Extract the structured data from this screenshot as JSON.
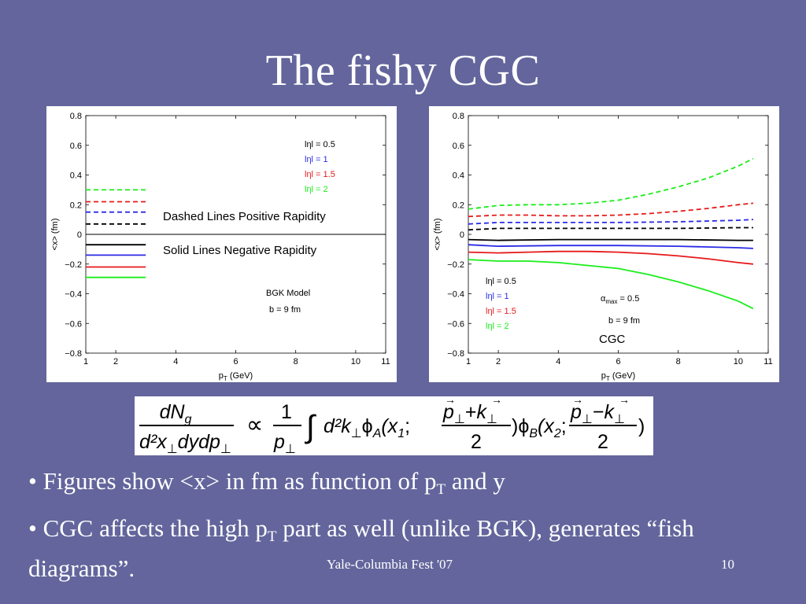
{
  "slide": {
    "title": "The fishy CGC",
    "footer": "Yale-Columbia Fest '07",
    "page_number": "10"
  },
  "bullets": [
    {
      "prefix": "• Figures show <x> in fm as function of p",
      "sub": "T",
      "suffix": " and y"
    },
    {
      "prefix": "• CGC affects the high p",
      "sub": "T",
      "suffix": " part as well (unlike BGK), generates “fish diagrams”."
    }
  ],
  "formula": {
    "lhs_num": "dN",
    "lhs_num_sub": "g",
    "lhs_den": "d²x",
    "lhs_den_rest": "dydp",
    "prop": "∝",
    "frac_num": "1",
    "frac_den": "p",
    "integral": "∫",
    "body": "d²k",
    "phiA": "ϕ",
    "phiA_sub": "A",
    "argA": "(x",
    "argA_sub": "1",
    "sep": ";",
    "num1": "p",
    "plus": "+",
    "k": "k",
    "two": "2",
    "close": ")",
    "phiB": "ϕ",
    "phiB_sub": "B",
    "argB": "(x",
    "argB_sub": "2",
    "minus": "−",
    "perp": "⊥",
    "arrow": "→"
  },
  "colors": {
    "background": "#63659c",
    "black": "#000000",
    "blue": "#2a2ae6",
    "red": "#e61a1a",
    "green": "#1aee1a"
  },
  "chart_data": [
    {
      "type": "line",
      "xlabel": "p_T (GeV)",
      "ylabel": "<x> (fm)",
      "xlim": [
        1,
        11
      ],
      "ylim": [
        -0.8,
        0.8
      ],
      "xticks": [
        "1",
        "2",
        "4",
        "6",
        "8",
        "10",
        "11"
      ],
      "xtick_values": [
        1,
        2,
        4,
        6,
        8,
        10,
        11
      ],
      "yticks": [
        "0.8",
        "0.6",
        "0.4",
        "0.2",
        "0",
        "−0.2",
        "−0.4",
        "−0.6",
        "−0.8"
      ],
      "ytick_values": [
        0.8,
        0.6,
        0.4,
        0.2,
        0,
        -0.2,
        -0.4,
        -0.6,
        -0.8
      ],
      "legend": [
        {
          "label": "lηl = 0.5",
          "color": "#000000"
        },
        {
          "label": "lηl = 1",
          "color": "#2a2ae6"
        },
        {
          "label": "lηl = 1.5",
          "color": "#e61a1a"
        },
        {
          "label": "lηl = 2",
          "color": "#1aee1a"
        }
      ],
      "legend_position": "top-right",
      "annotations": [
        "BGK Model",
        "b = 9 fm"
      ],
      "overlay_texts": [
        "Dashed Lines Positive Rapidity",
        "Solid Lines Negative Rapidity"
      ],
      "zero_line": true,
      "series": [
        {
          "name": "lηl = 0.5",
          "style": "dashed",
          "color": "#000000",
          "x": [
            1,
            3
          ],
          "y": [
            0.07,
            0.07
          ]
        },
        {
          "name": "lηl = 1",
          "style": "dashed",
          "color": "#2a2ae6",
          "x": [
            1,
            3
          ],
          "y": [
            0.15,
            0.15
          ]
        },
        {
          "name": "lηl = 1.5",
          "style": "dashed",
          "color": "#e61a1a",
          "x": [
            1,
            3
          ],
          "y": [
            0.22,
            0.22
          ]
        },
        {
          "name": "lηl = 2",
          "style": "dashed",
          "color": "#1aee1a",
          "x": [
            1,
            3
          ],
          "y": [
            0.3,
            0.3
          ]
        },
        {
          "name": "lηl = 0.5",
          "style": "solid",
          "color": "#000000",
          "x": [
            1,
            3
          ],
          "y": [
            -0.07,
            -0.07
          ]
        },
        {
          "name": "lηl = 1",
          "style": "solid",
          "color": "#2a2ae6",
          "x": [
            1,
            3
          ],
          "y": [
            -0.14,
            -0.14
          ]
        },
        {
          "name": "lηl = 1.5",
          "style": "solid",
          "color": "#e61a1a",
          "x": [
            1,
            3
          ],
          "y": [
            -0.22,
            -0.22
          ]
        },
        {
          "name": "lηl = 2",
          "style": "solid",
          "color": "#1aee1a",
          "x": [
            1,
            3
          ],
          "y": [
            -0.29,
            -0.29
          ]
        }
      ]
    },
    {
      "type": "line",
      "xlabel": "p_T (GeV)",
      "ylabel": "<x> (fm)",
      "xlim": [
        1,
        11
      ],
      "ylim": [
        -0.8,
        0.8
      ],
      "xticks": [
        "1",
        "2",
        "4",
        "6",
        "8",
        "10",
        "11"
      ],
      "xtick_values": [
        1,
        2,
        4,
        6,
        8,
        10,
        11
      ],
      "yticks": [
        "0.8",
        "0.6",
        "0.4",
        "0.2",
        "0",
        "−0.2",
        "−0.4",
        "−0.6",
        "−0.8"
      ],
      "ytick_values": [
        0.8,
        0.6,
        0.4,
        0.2,
        0,
        -0.2,
        -0.4,
        -0.6,
        -0.8
      ],
      "legend": [
        {
          "label": "lηl = 0.5",
          "color": "#000000"
        },
        {
          "label": "lηl = 1",
          "color": "#2a2ae6"
        },
        {
          "label": "lηl = 1.5",
          "color": "#e61a1a"
        },
        {
          "label": "lηl = 2",
          "color": "#1aee1a"
        }
      ],
      "legend_position": "bottom-left",
      "annotations": [
        "α",
        "max",
        " = 0.5",
        "b = 9 fm"
      ],
      "overlay_texts": [
        "CGC"
      ],
      "zero_line": false,
      "series": [
        {
          "name": "lηl = 2",
          "style": "dashed",
          "color": "#1aee1a",
          "x": [
            1,
            2,
            3,
            4,
            5,
            6,
            7,
            8,
            9,
            10,
            10.5
          ],
          "y": [
            0.17,
            0.195,
            0.2,
            0.2,
            0.21,
            0.23,
            0.27,
            0.32,
            0.38,
            0.46,
            0.51
          ]
        },
        {
          "name": "lηl = 1.5",
          "style": "dashed",
          "color": "#e61a1a",
          "x": [
            1,
            2,
            3,
            4,
            5,
            6,
            7,
            8,
            9,
            10,
            10.5
          ],
          "y": [
            0.12,
            0.13,
            0.13,
            0.125,
            0.125,
            0.13,
            0.14,
            0.155,
            0.175,
            0.2,
            0.21
          ]
        },
        {
          "name": "lηl = 1",
          "style": "dashed",
          "color": "#2a2ae6",
          "x": [
            1,
            2,
            4,
            6,
            8,
            10,
            10.5
          ],
          "y": [
            0.07,
            0.08,
            0.08,
            0.08,
            0.085,
            0.095,
            0.1
          ]
        },
        {
          "name": "lηl = 0.5",
          "style": "dashed",
          "color": "#000000",
          "x": [
            1,
            2,
            4,
            6,
            8,
            10,
            10.5
          ],
          "y": [
            0.03,
            0.04,
            0.04,
            0.04,
            0.04,
            0.045,
            0.045
          ]
        },
        {
          "name": "lηl = 0.5",
          "style": "solid",
          "color": "#000000",
          "x": [
            1,
            2,
            4,
            6,
            8,
            10,
            10.5
          ],
          "y": [
            -0.035,
            -0.04,
            -0.035,
            -0.035,
            -0.035,
            -0.04,
            -0.04
          ]
        },
        {
          "name": "lηl = 1",
          "style": "solid",
          "color": "#2a2ae6",
          "x": [
            1,
            2,
            4,
            6,
            8,
            10,
            10.5
          ],
          "y": [
            -0.07,
            -0.08,
            -0.075,
            -0.075,
            -0.08,
            -0.09,
            -0.095
          ]
        },
        {
          "name": "lηl = 1.5",
          "style": "solid",
          "color": "#e61a1a",
          "x": [
            1,
            2,
            3,
            4,
            5,
            6,
            7,
            8,
            9,
            10,
            10.5
          ],
          "y": [
            -0.12,
            -0.125,
            -0.12,
            -0.115,
            -0.115,
            -0.12,
            -0.13,
            -0.145,
            -0.165,
            -0.19,
            -0.2
          ]
        },
        {
          "name": "lηl = 2",
          "style": "solid",
          "color": "#1aee1a",
          "x": [
            1,
            2,
            3,
            4,
            5,
            6,
            7,
            8,
            9,
            10,
            10.5
          ],
          "y": [
            -0.17,
            -0.18,
            -0.18,
            -0.19,
            -0.21,
            -0.23,
            -0.27,
            -0.32,
            -0.38,
            -0.45,
            -0.5
          ]
        }
      ]
    }
  ]
}
